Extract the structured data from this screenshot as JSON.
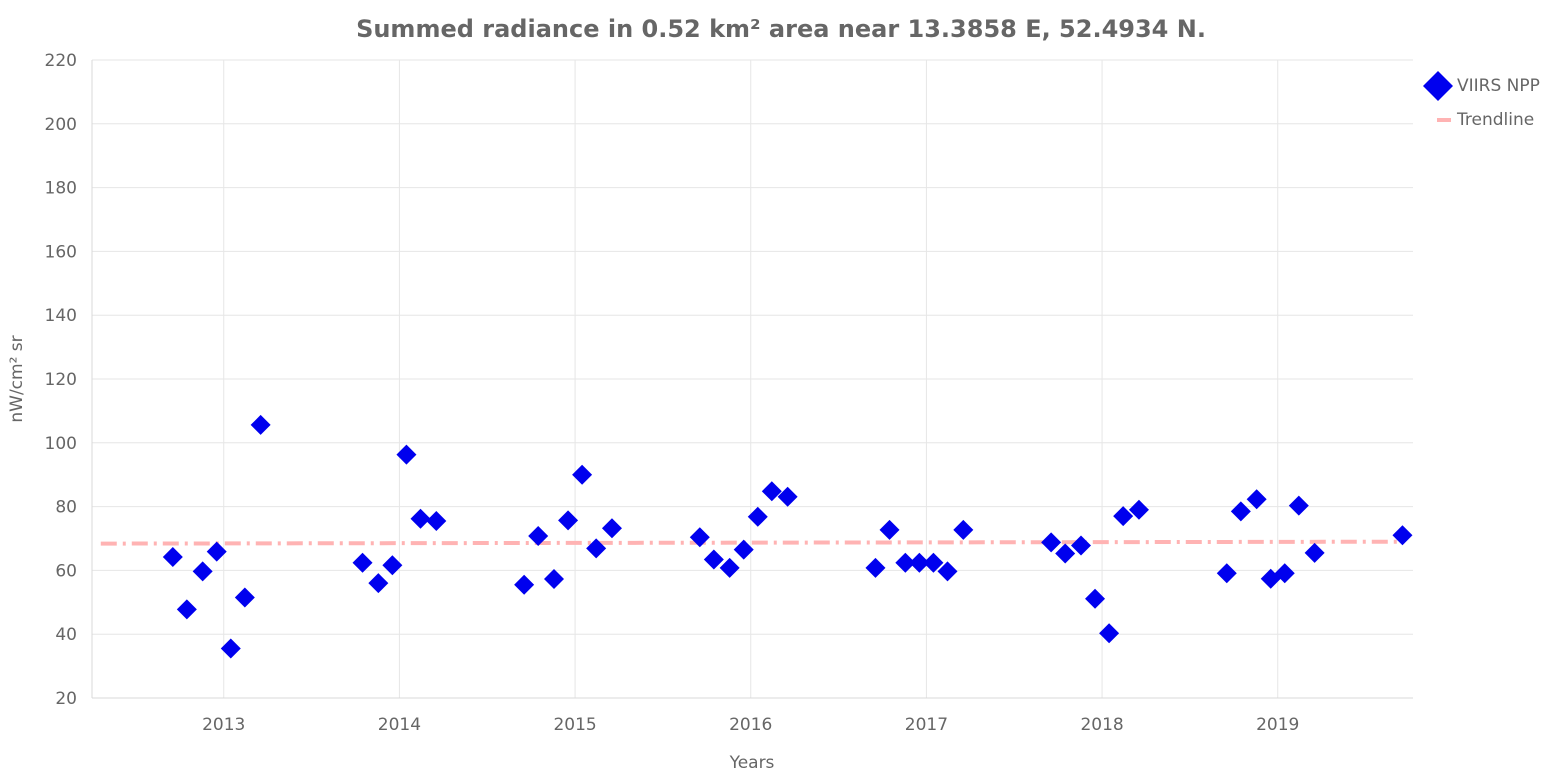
{
  "chart_data": {
    "type": "scatter",
    "title": "Summed radiance in 0.52 km² area near 13.3858 E, 52.4934 N.",
    "xlabel": "Years",
    "ylabel": "nW/cm² sr",
    "xlim": [
      2012.25,
      2019.77
    ],
    "ylim": [
      20,
      220
    ],
    "x_ticks": [
      2013,
      2014,
      2015,
      2016,
      2017,
      2018,
      2019
    ],
    "x_tick_labels": [
      "2013",
      "2014",
      "2015",
      "2016",
      "2017",
      "2018",
      "2019"
    ],
    "y_ticks": [
      20,
      40,
      60,
      80,
      100,
      120,
      140,
      160,
      180,
      200,
      220
    ],
    "y_tick_labels": [
      "20",
      "40",
      "60",
      "80",
      "100",
      "120",
      "140",
      "160",
      "180",
      "200",
      "220"
    ],
    "grid": true,
    "legend_position": "top-right",
    "colors": {
      "series": "#0000ee",
      "trend": "#ffb3b3",
      "grid": "#e6e6e6",
      "text": "#666666"
    },
    "series": [
      {
        "name": "VIIRS NPP",
        "marker": "diamond",
        "x": [
          2012.71,
          2012.79,
          2012.88,
          2012.96,
          2013.04,
          2013.12,
          2013.21,
          2013.79,
          2013.88,
          2013.96,
          2014.04,
          2014.12,
          2014.21,
          2014.71,
          2014.79,
          2014.88,
          2014.96,
          2015.04,
          2015.12,
          2015.21,
          2015.71,
          2015.79,
          2015.88,
          2015.96,
          2016.04,
          2016.12,
          2016.21,
          2016.71,
          2016.79,
          2016.88,
          2016.96,
          2017.04,
          2017.12,
          2017.21,
          2017.71,
          2017.79,
          2017.88,
          2017.96,
          2018.04,
          2018.12,
          2018.21,
          2018.71,
          2018.79,
          2018.88,
          2018.96,
          2019.04,
          2019.12,
          2019.21,
          2019.71
        ],
        "y": [
          64.2,
          47.8,
          59.7,
          65.9,
          35.5,
          51.5,
          105.6,
          62.4,
          56.0,
          61.6,
          96.3,
          76.2,
          75.5,
          55.5,
          70.8,
          57.3,
          75.7,
          90.0,
          66.9,
          73.2,
          70.4,
          63.4,
          60.8,
          66.5,
          76.8,
          84.8,
          83.1,
          60.8,
          72.7,
          62.4,
          62.4,
          62.4,
          59.7,
          72.7,
          68.8,
          65.3,
          67.8,
          51.1,
          40.3,
          77.0,
          79.0,
          59.1,
          78.5,
          82.3,
          57.4,
          59.1,
          80.3,
          65.5,
          71.0
        ]
      },
      {
        "name": "Trendline",
        "style": "dash-dot",
        "x": [
          2012.3,
          2019.72
        ],
        "y": [
          68.4,
          69.0
        ]
      }
    ]
  }
}
